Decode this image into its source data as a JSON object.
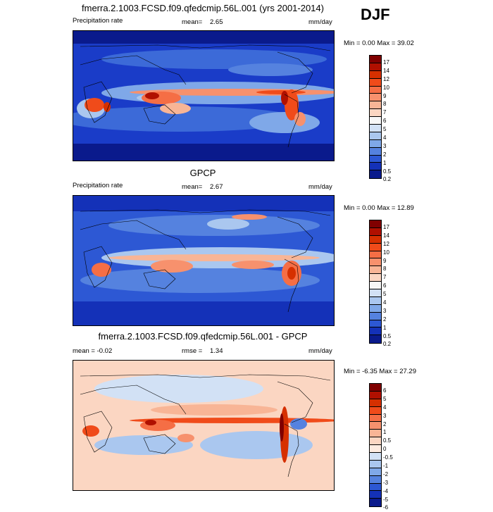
{
  "season": "DJF",
  "panels": [
    {
      "title": "fmerra.2.1003.FCSD.f09.qfedcmip.56L.001 (yrs 2001-2014)",
      "left_label": "Precipitation rate",
      "stat_label": "mean=",
      "stat_value": "2.65",
      "units": "mm/day",
      "range_text": "Min =   0.00 Max =  39.02",
      "colorbar": {
        "labels": [
          "17",
          "14",
          "12",
          "10",
          "9",
          "8",
          "7",
          "6",
          "5",
          "4",
          "3",
          "2",
          "1",
          "0.5",
          "0.2"
        ],
        "colors": [
          "#800000",
          "#b01000",
          "#d63000",
          "#f04b1a",
          "#f56e45",
          "#f7916d",
          "#f8b596",
          "#fbd6c2",
          "#f7f7f7",
          "#d2e1f5",
          "#aac7ef",
          "#7fa8e8",
          "#5582df",
          "#2d58d4",
          "#1431b8",
          "#0a1a8c"
        ]
      }
    },
    {
      "title": "GPCP",
      "left_label": "Precipitation rate",
      "stat_label": "mean=",
      "stat_value": "2.67",
      "units": "mm/day",
      "range_text": "Min =   0.00 Max =  12.89",
      "colorbar": {
        "labels": [
          "17",
          "14",
          "12",
          "10",
          "9",
          "8",
          "7",
          "6",
          "5",
          "4",
          "3",
          "2",
          "1",
          "0.5",
          "0.2"
        ],
        "colors": [
          "#800000",
          "#b01000",
          "#d63000",
          "#f04b1a",
          "#f56e45",
          "#f7916d",
          "#f8b596",
          "#fbd6c2",
          "#f7f7f7",
          "#d2e1f5",
          "#aac7ef",
          "#7fa8e8",
          "#5582df",
          "#2d58d4",
          "#1431b8",
          "#0a1a8c"
        ]
      }
    },
    {
      "title": "fmerra.2.1003.FCSD.f09.qfedcmip.56L.001 - GPCP",
      "left_label": "mean =  -0.02",
      "stat_label": "rmse =",
      "stat_value": "1.34",
      "units": "mm/day",
      "range_text": "Min =  -6.35 Max =  27.29",
      "colorbar": {
        "labels": [
          "6",
          "5",
          "4",
          "3",
          "2",
          "1",
          "0.5",
          "0",
          "-0.5",
          "-1",
          "-2",
          "-3",
          "-4",
          "-5",
          "-6"
        ],
        "colors": [
          "#800000",
          "#b01000",
          "#d63000",
          "#f04b1a",
          "#f56e45",
          "#f7916d",
          "#f8b596",
          "#fbd6c2",
          "#fdebe0",
          "#d2e1f5",
          "#aac7ef",
          "#7fa8e8",
          "#5582df",
          "#2d58d4",
          "#1431b8",
          "#0a1a8c"
        ]
      }
    }
  ]
}
